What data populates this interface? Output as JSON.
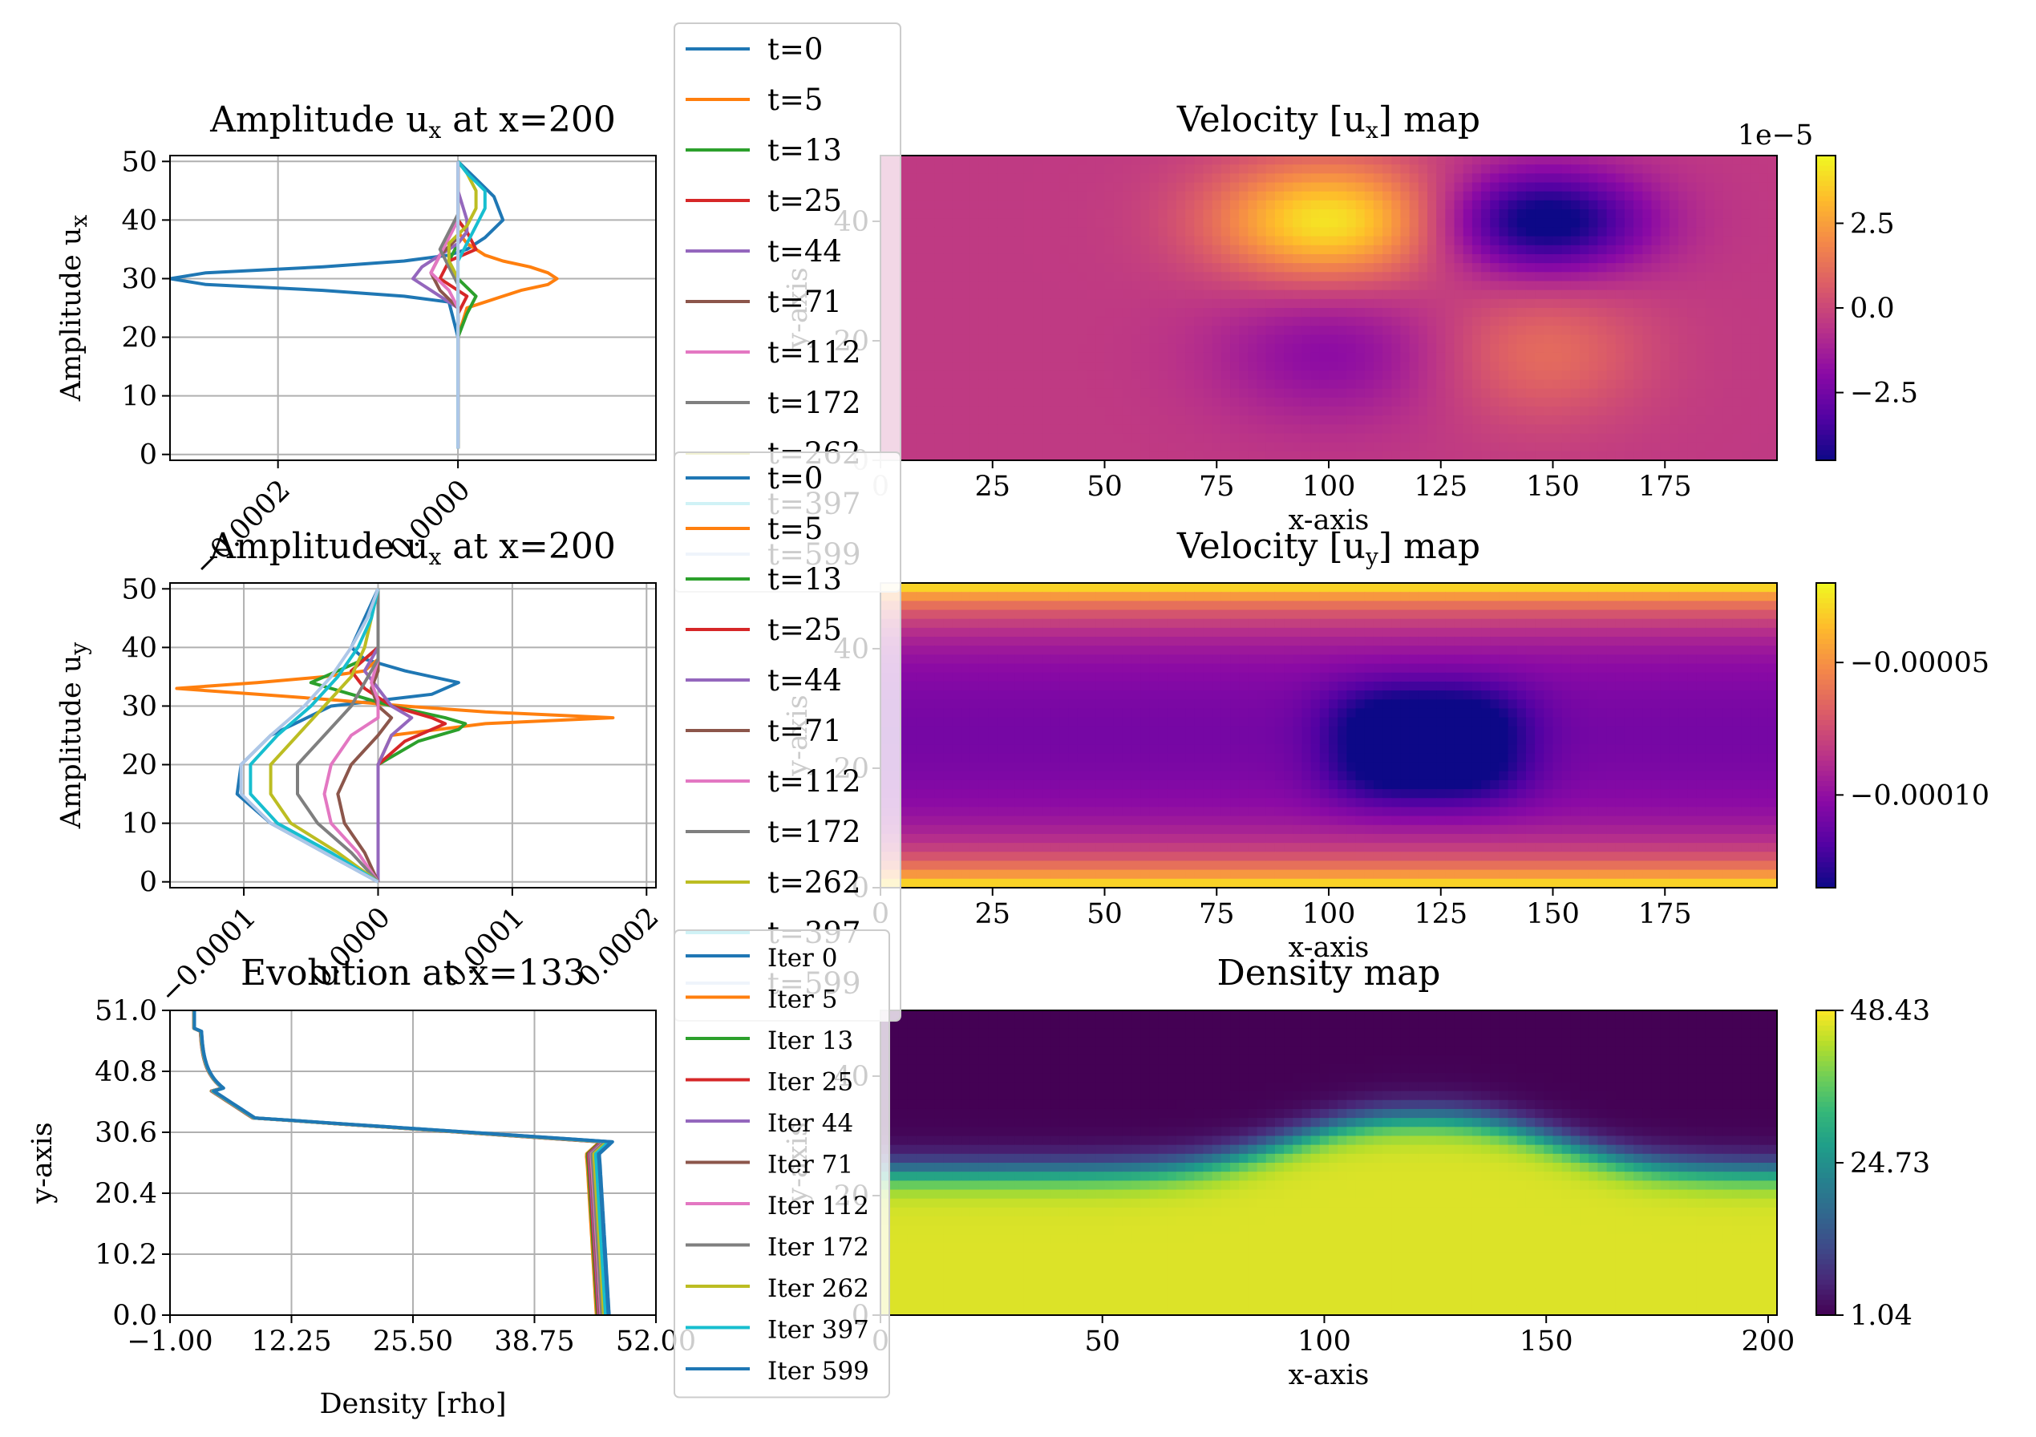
{
  "chart_data": [
    {
      "type": "line",
      "id": "ux-profile",
      "title": "Amplitude u$_x$ at x=200",
      "title_main": "Amplitude u",
      "title_sub": "x",
      "title_rest": " at x=200",
      "xlabel": "",
      "ylabel_main": "Amplitude u",
      "ylabel_sub": "x",
      "xlim": [
        -0.00032,
        0.00022
      ],
      "ylim": [
        -1,
        51
      ],
      "xticks": [
        -0.0002,
        0.0
      ],
      "xtick_labels": [
        "−0.0002",
        "0.0000"
      ],
      "yticks": [
        0,
        10,
        20,
        30,
        40,
        50
      ],
      "ytick_labels": [
        "0",
        "10",
        "20",
        "30",
        "40",
        "50"
      ],
      "grid": true,
      "legend_labels": [
        "t=0",
        "t=5",
        "t=13",
        "t=25",
        "t=44",
        "t=71",
        "t=112",
        "t=172",
        "t=262",
        "t=397",
        "t=599"
      ],
      "series": [
        {
          "name": "t=0",
          "color": "#1f77b4",
          "y": [
            1,
            10,
            20,
            26,
            27,
            28,
            29,
            30,
            31,
            32,
            33,
            34,
            35,
            36,
            37,
            40,
            44,
            47,
            50
          ],
          "x": [
            0,
            0,
            0,
            -1e-05,
            -6e-05,
            -0.00015,
            -0.00028,
            -0.00032,
            -0.00028,
            -0.00015,
            -6e-05,
            -1e-05,
            1e-05,
            2e-05,
            3e-05,
            5e-05,
            4e-05,
            2e-05,
            0
          ]
        },
        {
          "name": "t=5",
          "color": "#ff7f0e",
          "y": [
            1,
            20,
            25,
            26,
            27,
            28,
            29,
            30,
            31,
            32,
            33,
            34,
            35,
            36,
            38,
            40,
            45,
            50
          ],
          "x": [
            0,
            0,
            1e-05,
            3e-05,
            5e-05,
            7e-05,
            0.0001,
            0.00011,
            0.0001,
            8e-05,
            5e-05,
            3e-05,
            2e-05,
            1e-05,
            0,
            0,
            0,
            0
          ]
        },
        {
          "name": "t=13",
          "color": "#2ca02c",
          "y": [
            1,
            20,
            24,
            27,
            30,
            33,
            36,
            38,
            40,
            45,
            50
          ],
          "x": [
            0,
            0,
            1e-05,
            2e-05,
            0,
            -1e-05,
            0,
            1e-05,
            0,
            0,
            0
          ]
        },
        {
          "name": "t=25",
          "color": "#d62728",
          "y": [
            1,
            20,
            24,
            27,
            30,
            33,
            35,
            38,
            40,
            45,
            50
          ],
          "x": [
            0,
            0,
            0,
            1e-05,
            -2e-05,
            -1e-05,
            2e-05,
            1e-05,
            0,
            0,
            0
          ]
        },
        {
          "name": "t=44",
          "color": "#9467bd",
          "y": [
            1,
            20,
            25,
            28,
            30,
            32,
            34,
            36,
            38,
            40,
            45,
            50
          ],
          "x": [
            0,
            0,
            0,
            -3e-05,
            -5e-05,
            -4e-05,
            -2e-05,
            0,
            1e-05,
            1e-05,
            0,
            0
          ]
        },
        {
          "name": "t=71",
          "color": "#8c564b",
          "y": [
            1,
            20,
            25,
            28,
            31,
            34,
            37,
            40,
            45,
            50
          ],
          "x": [
            0,
            0,
            0,
            -2e-05,
            -3e-05,
            -2e-05,
            0,
            0,
            0,
            0
          ]
        },
        {
          "name": "t=112",
          "color": "#e377c2",
          "y": [
            1,
            20,
            25,
            28,
            31,
            34,
            37,
            40,
            45,
            50
          ],
          "x": [
            0,
            0,
            0,
            -1e-05,
            -3e-05,
            -2e-05,
            -1e-05,
            0,
            0,
            0
          ]
        },
        {
          "name": "t=172",
          "color": "#7f7f7f",
          "y": [
            1,
            20,
            25,
            29,
            32,
            35,
            38,
            41,
            45,
            50
          ],
          "x": [
            0,
            0,
            0,
            0,
            -1e-05,
            -2e-05,
            -1e-05,
            0,
            0,
            0
          ]
        },
        {
          "name": "t=262",
          "color": "#bcbd22",
          "y": [
            1,
            20,
            25,
            30,
            33,
            36,
            39,
            42,
            45,
            48,
            50
          ],
          "x": [
            0,
            0,
            0,
            0,
            -1e-05,
            -1e-05,
            1e-05,
            2e-05,
            2e-05,
            1e-05,
            0
          ]
        },
        {
          "name": "t=397",
          "color": "#17becf",
          "y": [
            1,
            20,
            25,
            30,
            33,
            36,
            39,
            42,
            45,
            48,
            50
          ],
          "x": [
            0,
            0,
            0,
            0,
            0,
            1e-05,
            2e-05,
            3e-05,
            3e-05,
            1e-05,
            0
          ]
        },
        {
          "name": "t=599",
          "color": "#aec7e8",
          "y": [
            1,
            20,
            30,
            35,
            40,
            45,
            50
          ],
          "x": [
            0,
            0,
            0,
            0,
            0,
            0,
            0
          ]
        }
      ]
    },
    {
      "type": "heatmap",
      "id": "ux-map",
      "title_main": "Velocity [u",
      "title_sub": "x",
      "title_rest": "] map",
      "xlabel": "x-axis",
      "ylabel": "y-axis",
      "xlim": [
        0,
        200
      ],
      "ylim": [
        0,
        51
      ],
      "xticks": [
        0,
        25,
        50,
        75,
        100,
        125,
        150,
        175
      ],
      "xtick_labels": [
        "0",
        "25",
        "50",
        "75",
        "100",
        "125",
        "150",
        "175"
      ],
      "yticks": [
        0,
        20,
        40
      ],
      "ytick_labels": [
        "0",
        "20",
        "40"
      ],
      "colormap": "plasma",
      "colorbar_offset": "1e−5",
      "colorbar_ticks": [
        -2.5,
        0.0,
        2.5
      ],
      "colorbar_tick_labels": [
        "−2.5",
        "0.0",
        "2.5"
      ],
      "vmin": -4.5,
      "vmax": 4.5,
      "features": [
        {
          "x": 100,
          "y": 40,
          "amplitude": 4.5,
          "sx": 18,
          "sy": 7
        },
        {
          "x": 148,
          "y": 40,
          "amplitude": -4.6,
          "sx": 16,
          "sy": 6
        },
        {
          "x": 100,
          "y": 18,
          "amplitude": -1.5,
          "sx": 18,
          "sy": 8
        },
        {
          "x": 148,
          "y": 18,
          "amplitude": 1.5,
          "sx": 16,
          "sy": 8
        }
      ]
    },
    {
      "type": "line",
      "id": "uy-profile",
      "title_main": "Amplitude u",
      "title_sub": "x",
      "title_rest": " at x=200",
      "xlabel": "",
      "ylabel_main": "Amplitude u",
      "ylabel_sub": "y",
      "xlim": [
        -0.000155,
        0.000207
      ],
      "ylim": [
        -1,
        51
      ],
      "xticks": [
        -0.0001,
        0.0,
        0.0001,
        0.0002
      ],
      "xtick_labels": [
        "−0.0001",
        "0.0000",
        "0.0001",
        "0.0002"
      ],
      "yticks": [
        0,
        10,
        20,
        30,
        40,
        50
      ],
      "ytick_labels": [
        "0",
        "10",
        "20",
        "30",
        "40",
        "50"
      ],
      "grid": true,
      "legend_labels": [
        "t=0",
        "t=5",
        "t=13",
        "t=25",
        "t=44",
        "t=71",
        "t=112",
        "t=172",
        "t=262",
        "t=397",
        "t=599"
      ],
      "series": [
        {
          "name": "t=0",
          "color": "#1f77b4",
          "y": [
            0,
            5,
            10,
            15,
            20,
            25,
            30,
            32,
            34,
            36,
            38,
            40,
            45,
            50
          ],
          "x": [
            0,
            -4e-05,
            -8e-05,
            -0.000105,
            -0.000102,
            -8e-05,
            -3.5e-05,
            4e-05,
            6e-05,
            2e-05,
            -1e-05,
            -2e-05,
            -1e-05,
            0
          ]
        },
        {
          "name": "t=5",
          "color": "#ff7f0e",
          "y": [
            0,
            20,
            25,
            27,
            28,
            29,
            30,
            31,
            32,
            33,
            34,
            35,
            36,
            38,
            40,
            45,
            50
          ],
          "x": [
            0,
            0,
            1e-05,
            8e-05,
            0.000175,
            8e-05,
            2e-05,
            -3e-05,
            -9e-05,
            -0.00015,
            -9e-05,
            -4e-05,
            -1e-05,
            0,
            0,
            0,
            0
          ]
        },
        {
          "name": "t=13",
          "color": "#2ca02c",
          "y": [
            0,
            20,
            24,
            26,
            27,
            28,
            30,
            32,
            34,
            36,
            38,
            40,
            45,
            50
          ],
          "x": [
            0,
            0,
            3e-05,
            6e-05,
            6.5e-05,
            5e-05,
            1e-05,
            -2e-05,
            -5e-05,
            -3e-05,
            -1e-05,
            0,
            0,
            0
          ]
        },
        {
          "name": "t=25",
          "color": "#d62728",
          "y": [
            0,
            20,
            24,
            26,
            27,
            28,
            30,
            33,
            36,
            40,
            45,
            50
          ],
          "x": [
            0,
            0,
            2e-05,
            4e-05,
            5e-05,
            4e-05,
            1e-05,
            -1e-05,
            -2e-05,
            0,
            0,
            0
          ]
        },
        {
          "name": "t=44",
          "color": "#9467bd",
          "y": [
            0,
            20,
            25,
            27,
            28,
            30,
            33,
            36,
            40,
            45,
            50
          ],
          "x": [
            0,
            0,
            1e-05,
            2e-05,
            2.5e-05,
            1e-05,
            0,
            -1e-05,
            0,
            0,
            0
          ]
        },
        {
          "name": "t=71",
          "color": "#8c564b",
          "y": [
            0,
            5,
            10,
            15,
            20,
            25,
            28,
            30,
            33,
            36,
            40,
            45,
            50
          ],
          "x": [
            0,
            -1e-05,
            -2.5e-05,
            -3e-05,
            -2e-05,
            0,
            1e-05,
            0,
            -5e-06,
            0,
            0,
            0,
            0
          ]
        },
        {
          "name": "t=112",
          "color": "#e377c2",
          "y": [
            0,
            5,
            10,
            15,
            20,
            25,
            28,
            31,
            34,
            38,
            42,
            46,
            50
          ],
          "x": [
            0,
            -1.5e-05,
            -3.5e-05,
            -4e-05,
            -3.5e-05,
            -2e-05,
            0,
            0,
            -5e-06,
            0,
            0,
            0,
            0
          ]
        },
        {
          "name": "t=172",
          "color": "#7f7f7f",
          "y": [
            0,
            5,
            10,
            15,
            20,
            25,
            30,
            34,
            38,
            42,
            46,
            50
          ],
          "x": [
            0,
            -2e-05,
            -4.5e-05,
            -6e-05,
            -6e-05,
            -4e-05,
            -2e-05,
            -1e-05,
            0,
            0,
            0,
            0
          ]
        },
        {
          "name": "t=262",
          "color": "#bcbd22",
          "y": [
            0,
            5,
            10,
            15,
            20,
            25,
            30,
            35,
            40,
            45,
            50
          ],
          "x": [
            0,
            -3e-05,
            -6.5e-05,
            -8e-05,
            -8e-05,
            -6e-05,
            -4e-05,
            -2e-05,
            -1e-05,
            -5e-06,
            0
          ]
        },
        {
          "name": "t=397",
          "color": "#17becf",
          "y": [
            0,
            5,
            10,
            15,
            20,
            25,
            30,
            35,
            40,
            45,
            50
          ],
          "x": [
            0,
            -3.5e-05,
            -7.5e-05,
            -9.5e-05,
            -9.5e-05,
            -7.5e-05,
            -5e-05,
            -3e-05,
            -1.5e-05,
            -5e-06,
            0
          ]
        },
        {
          "name": "t=599",
          "color": "#aec7e8",
          "y": [
            0,
            5,
            10,
            15,
            20,
            25,
            30,
            35,
            40,
            45,
            50
          ],
          "x": [
            0,
            -4e-05,
            -8e-05,
            -0.000102,
            -0.000102,
            -8e-05,
            -5.5e-05,
            -3.5e-05,
            -2e-05,
            -8e-06,
            0
          ]
        }
      ]
    },
    {
      "type": "heatmap",
      "id": "uy-map",
      "title_main": "Velocity [u",
      "title_sub": "y",
      "title_rest": "] map",
      "xlabel": "x-axis",
      "ylabel": "y-axis",
      "xlim": [
        0,
        200
      ],
      "ylim": [
        0,
        51
      ],
      "xticks": [
        0,
        25,
        50,
        75,
        100,
        125,
        150,
        175
      ],
      "xtick_labels": [
        "0",
        "25",
        "50",
        "75",
        "100",
        "125",
        "150",
        "175"
      ],
      "yticks": [
        0,
        20,
        40
      ],
      "ytick_labels": [
        "0",
        "20",
        "40"
      ],
      "colormap": "plasma",
      "colorbar_ticks": [
        -0.0001,
        -5e-05
      ],
      "colorbar_tick_labels": [
        "−0.00010",
        "−0.00005"
      ],
      "vmin": -0.000135,
      "vmax": -2e-05,
      "features": [
        {
          "x": 122,
          "y": 24,
          "amplitude": -4.5e-05,
          "sx": 22,
          "sy": 10
        }
      ]
    },
    {
      "type": "line",
      "id": "density-profile",
      "title": "Evolution at x=133",
      "xlabel": "Density [rho]",
      "ylabel": "y-axis",
      "xlim": [
        -1.0,
        52.0
      ],
      "ylim": [
        0.0,
        51.0
      ],
      "xticks": [
        -1.0,
        12.25,
        25.5,
        38.75,
        52.0
      ],
      "xtick_labels": [
        "−1.00",
        "12.25",
        "25.50",
        "38.75",
        "52.00"
      ],
      "yticks": [
        0.0,
        10.2,
        20.4,
        30.6,
        40.8,
        51.0
      ],
      "ytick_labels": [
        "0.0",
        "10.2",
        "20.4",
        "30.6",
        "40.8",
        "51.0"
      ],
      "grid": true,
      "legend_labels": [
        "Iter 0",
        "Iter 5",
        "Iter 13",
        "Iter 25",
        "Iter 44",
        "Iter 71",
        "Iter 112",
        "Iter 172",
        "Iter 262",
        "Iter 397",
        "Iter 599"
      ],
      "series": [
        {
          "name": "Iter 0",
          "color": "#1f77b4",
          "shift": 1.4
        },
        {
          "name": "Iter 5",
          "color": "#ff7f0e",
          "shift": 0.0
        },
        {
          "name": "Iter 13",
          "color": "#2ca02c",
          "shift": 0.1
        },
        {
          "name": "Iter 25",
          "color": "#d62728",
          "shift": 0.2
        },
        {
          "name": "Iter 44",
          "color": "#9467bd",
          "shift": 0.3
        },
        {
          "name": "Iter 71",
          "color": "#8c564b",
          "shift": 0.4
        },
        {
          "name": "Iter 112",
          "color": "#e377c2",
          "shift": 0.5
        },
        {
          "name": "Iter 172",
          "color": "#7f7f7f",
          "shift": 0.6
        },
        {
          "name": "Iter 262",
          "color": "#bcbd22",
          "shift": 0.8
        },
        {
          "name": "Iter 397",
          "color": "#17becf",
          "shift": 1.0
        },
        {
          "name": "Iter 599",
          "color": "#1f77b4",
          "shift": 1.3
        }
      ]
    },
    {
      "type": "heatmap",
      "id": "density-map",
      "title": "Density map",
      "xlabel": "x-axis",
      "ylabel": "y-axis",
      "xlim": [
        0,
        202
      ],
      "ylim": [
        0,
        51
      ],
      "xticks": [
        0,
        50,
        100,
        150,
        200
      ],
      "xtick_labels": [
        "0",
        "50",
        "100",
        "150",
        "200"
      ],
      "yticks": [
        0,
        20,
        40
      ],
      "ytick_labels": [
        "0",
        "20",
        "40"
      ],
      "colormap": "viridis",
      "colorbar_ticks": [
        1.04,
        24.73,
        48.43
      ],
      "colorbar_tick_labels": [
        "1.04",
        "24.73",
        "48.43"
      ],
      "vmin": 1.04,
      "vmax": 48.43
    }
  ]
}
